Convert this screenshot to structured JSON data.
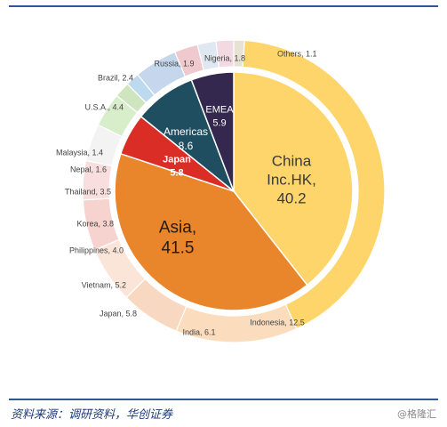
{
  "footer": {
    "source": "资料来源：调研资料，华创证券",
    "watermark": "@格隆汇"
  },
  "chart_data": {
    "type": "pie",
    "title": "",
    "outer_ring": {
      "name": "",
      "slices": [
        {
          "label": "Others",
          "value": 1.1,
          "color": "#e6e2d4"
        },
        {
          "label": "China Inc.HK",
          "value": 40.2,
          "color": "#fdd56b"
        },
        {
          "label": "Indonesia",
          "value": 12.5,
          "color": "#fbdcbd"
        },
        {
          "label": "India",
          "value": 6.1,
          "color": "#f8d8c0"
        },
        {
          "label": "Japan",
          "value": 5.8,
          "color": "#fae5d8"
        },
        {
          "label": "Vietnam",
          "value": 5.2,
          "color": "#f6d3cf"
        },
        {
          "label": "Philippines",
          "value": 4.0,
          "color": "#f8dede"
        },
        {
          "label": "Korea",
          "value": 3.8,
          "color": "#f3f3f3"
        },
        {
          "label": "Thailand",
          "value": 3.5,
          "color": "#d8edc9"
        },
        {
          "label": "Nepal",
          "value": 1.6,
          "color": "#cfe5c0"
        },
        {
          "label": "Malaysia",
          "value": 1.4,
          "color": "#bcd9ee"
        },
        {
          "label": "U.S.A.",
          "value": 4.4,
          "color": "#c5d7ec"
        },
        {
          "label": "Brazil",
          "value": 2.4,
          "color": "#f0c9ce"
        },
        {
          "label": "Russia",
          "value": 1.9,
          "color": "#dfe7f0"
        },
        {
          "label": "Nigeria",
          "value": 1.8,
          "color": "#f2d9e2"
        }
      ]
    },
    "inner_pie": {
      "name": "",
      "slices": [
        {
          "label": "China Inc.HK",
          "text_lines": [
            "China",
            "Inc.HK,",
            "40.2"
          ],
          "value": 40.2,
          "color": "#fdd56b",
          "text_color": "#3a3a3a",
          "font_size": 17,
          "bold": false
        },
        {
          "label": "Asia",
          "text_lines": [
            "Asia,",
            "41.5"
          ],
          "value": 41.5,
          "color": "#e9852b",
          "text_color": "#2a1a0a",
          "font_size": 19,
          "bold": false
        },
        {
          "label": "Japan",
          "text_lines": [
            "Japan",
            "5.8"
          ],
          "value": 5.8,
          "color": "#d92d26",
          "text_color": "#ffffff",
          "font_size": 11,
          "bold": true
        },
        {
          "label": "Americas",
          "text_lines": [
            "Americas",
            "8.6"
          ],
          "value": 8.6,
          "color": "#1f4e60",
          "text_color": "#ffffff",
          "font_size": 12,
          "bold": false
        },
        {
          "label": "EMEA",
          "text_lines": [
            "EMEA",
            "5.9"
          ],
          "value": 5.9,
          "color": "#34284f",
          "text_color": "#ffffff",
          "font_size": 11,
          "bold": false
        }
      ]
    },
    "callout_labels": [
      "Others, 1.1",
      "Nigeria, 1.8",
      "Russia, 1.9",
      "Brazil, 2.4",
      "U.S.A., 4.4",
      "Malaysia, 1.4",
      "Nepal, 1.6",
      "Thailand, 3.5",
      "Korea, 3.8",
      "Philippines, 4.0",
      "Vietnam, 5.2",
      "Japan, 5.8",
      "India, 6.1",
      "Indonesia, 12.5"
    ]
  }
}
